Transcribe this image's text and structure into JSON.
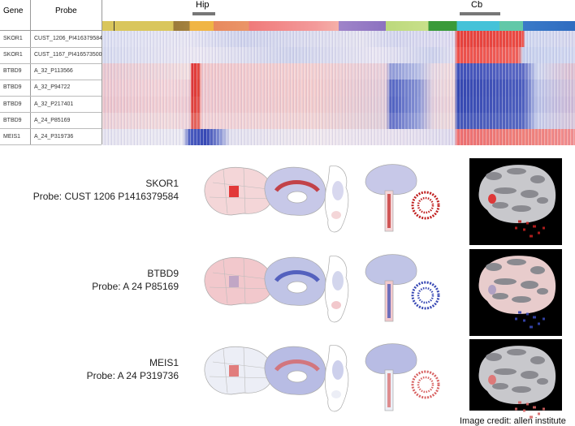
{
  "heatmap": {
    "header": {
      "gene": "Gene",
      "probe": "Probe"
    },
    "region_labels": [
      "Hip",
      "Cb"
    ],
    "rows": [
      {
        "gene": "SKOR1",
        "probe": "CUST_1206_PI416379584"
      },
      {
        "gene": "SKOR1",
        "probe": "CUST_1167_PI416573500"
      },
      {
        "gene": "BTBD9",
        "probe": "A_32_P113566"
      },
      {
        "gene": "BTBD9",
        "probe": "A_32_P94722"
      },
      {
        "gene": "BTBD9",
        "probe": "A_32_P217401"
      },
      {
        "gene": "BTBD9",
        "probe": "A_24_P85169"
      },
      {
        "gene": "MEIS1",
        "probe": "A_24_P319736"
      }
    ]
  },
  "panels": [
    {
      "gene": "SKOR1",
      "probe": "Probe: CUST 1206 P1416379584"
    },
    {
      "gene": "BTBD9",
      "probe": "Probe: A 24 P85169"
    },
    {
      "gene": "MEIS1",
      "probe": "Probe: A 24 P319736"
    }
  ],
  "credit": "Image credit: allen institute"
}
